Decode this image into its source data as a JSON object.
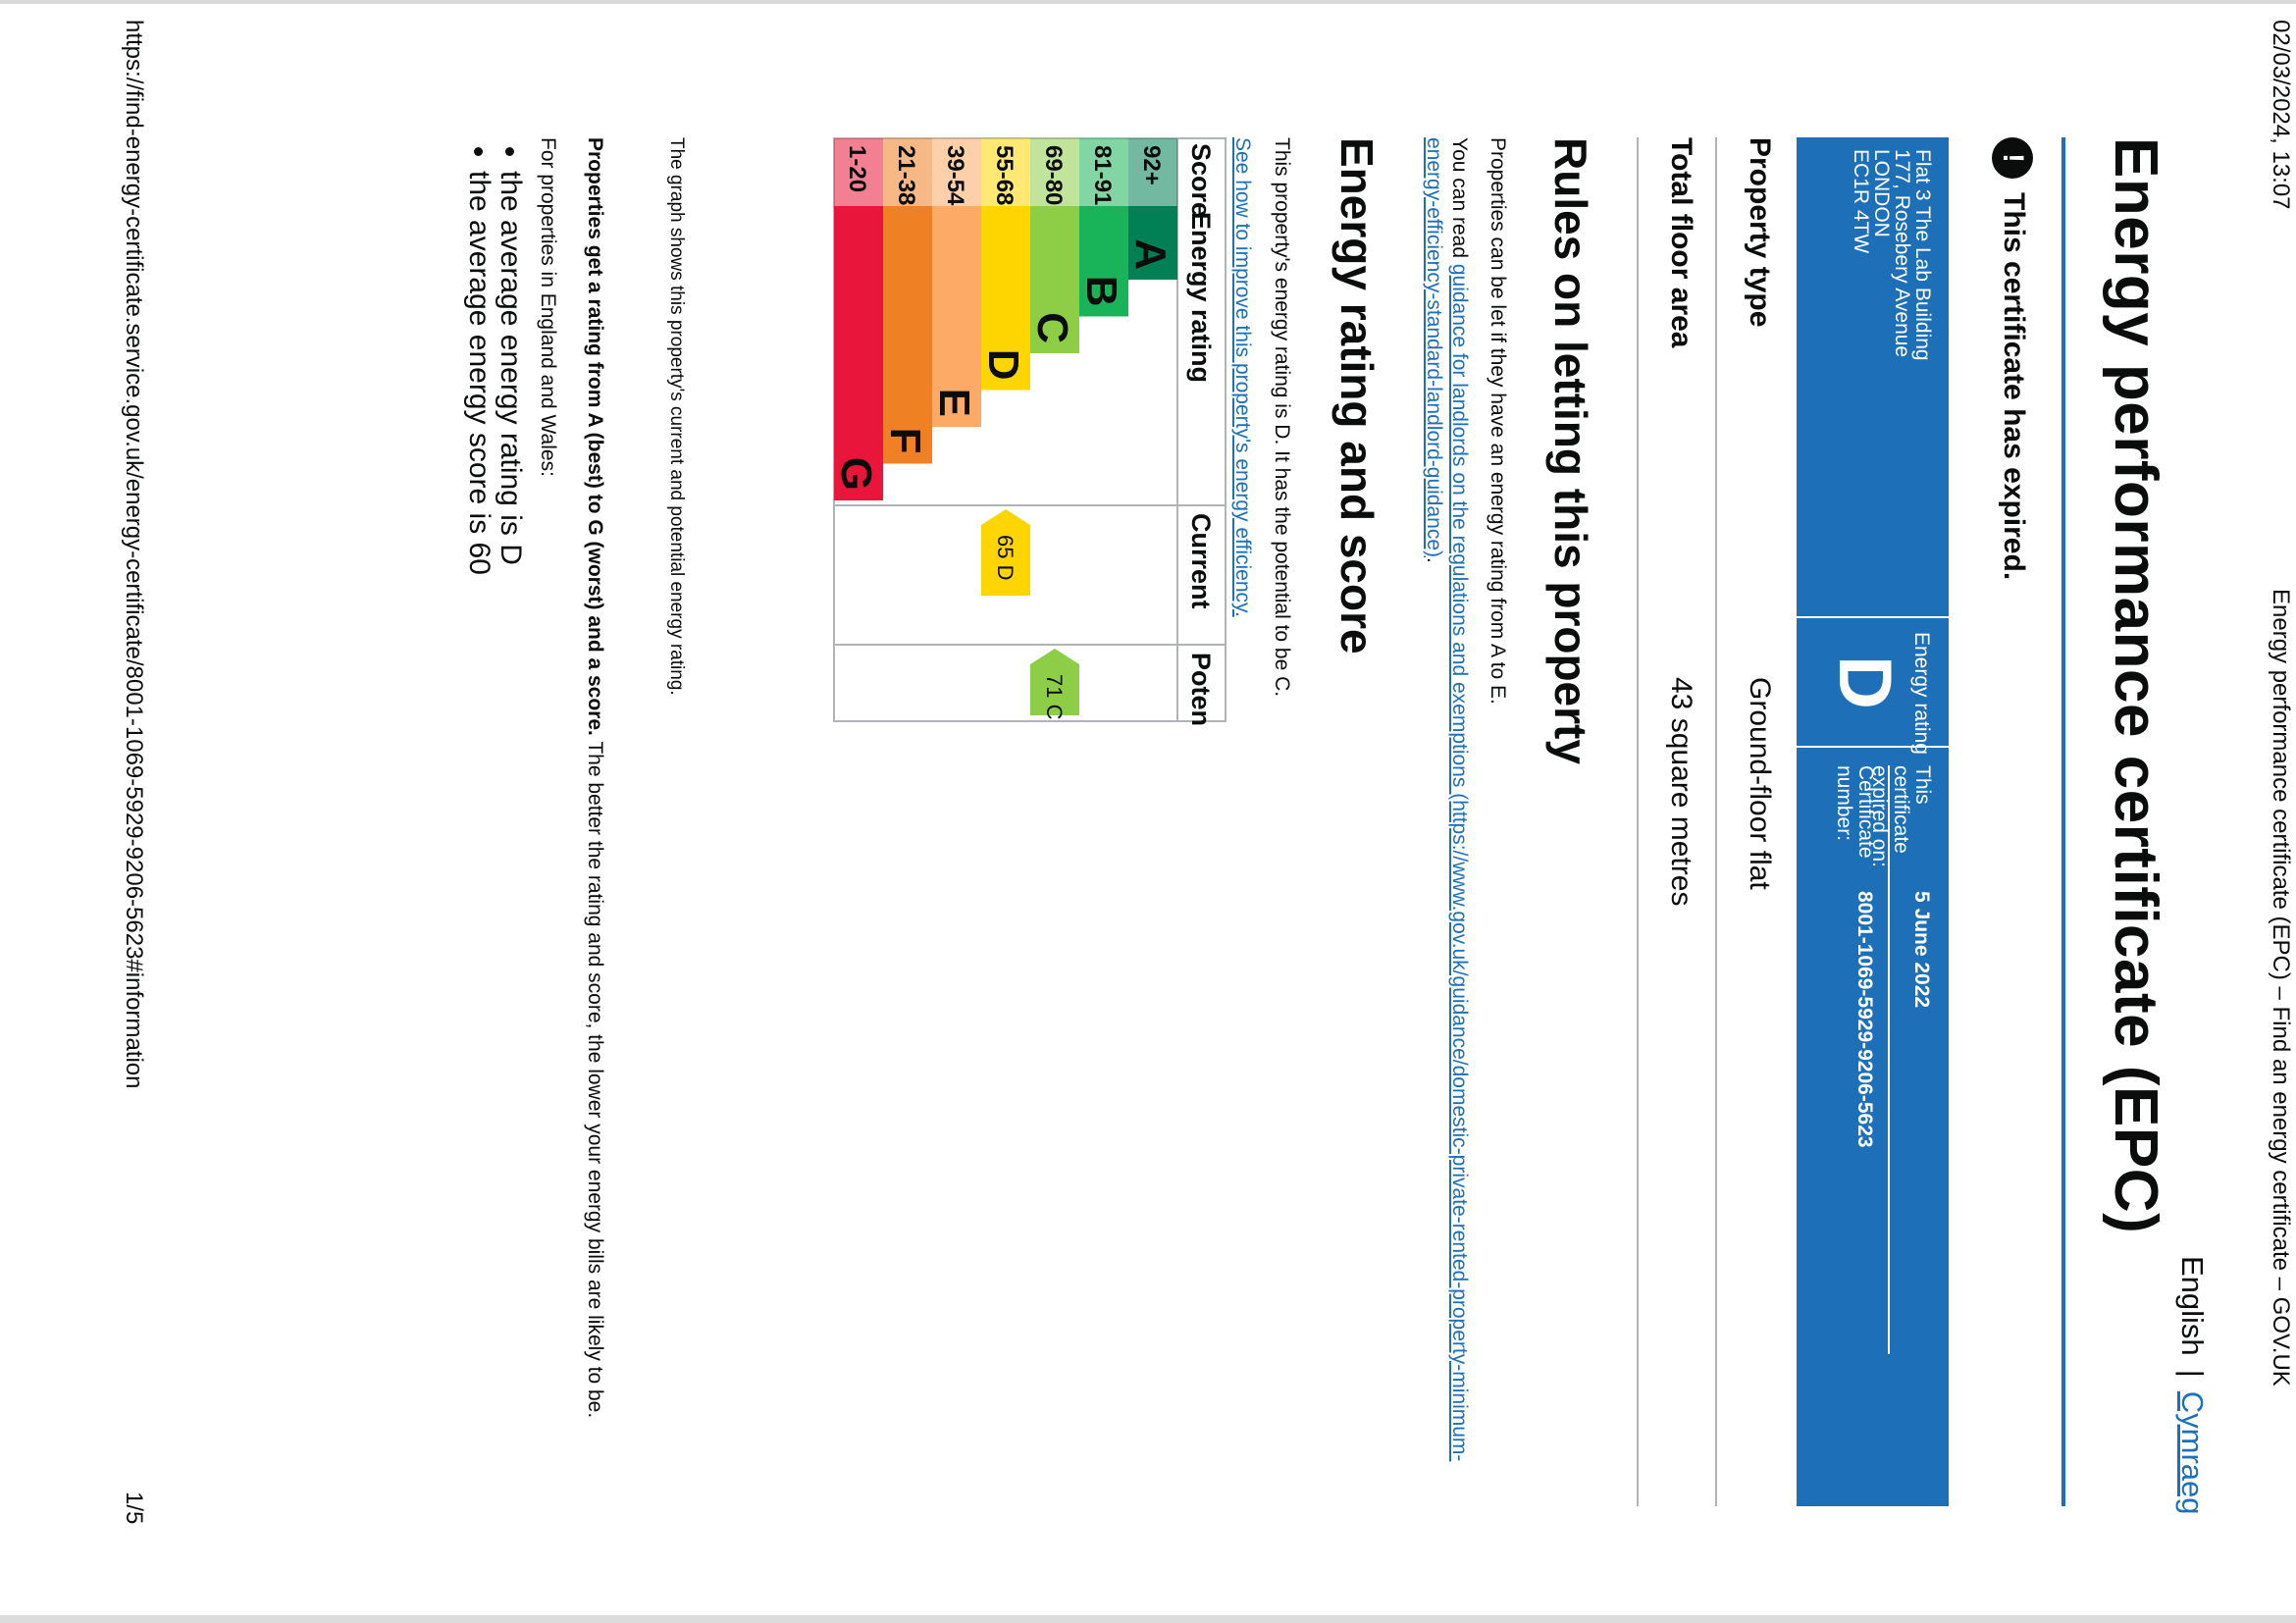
{
  "header": {
    "datetime": "02/03/2024, 13:07",
    "page_title": "Energy performance certificate (EPC) – Find an energy certificate – GOV.UK"
  },
  "language": {
    "english": "English",
    "separator": "|",
    "welsh": "Cymraeg"
  },
  "title": "Energy performance certificate (EPC)",
  "notice": {
    "icon": "!",
    "text": "This certificate has expired."
  },
  "summary": {
    "address": [
      "Flat 3 The Lab Building",
      "177, Rosebery Avenue",
      "LONDON",
      "EC1R 4TW"
    ],
    "energy_rating_label": "Energy rating",
    "energy_rating": "D",
    "expired_label": "This certificate expired on:",
    "expired_date": "5 June 2022",
    "certificate_label": "Certificate number:",
    "certificate_number": "8001-1069-5929-9206-5623"
  },
  "property": {
    "type_label": "Property type",
    "type_value": "Ground-floor flat",
    "area_label": "Total floor area",
    "area_value": "43 square metres"
  },
  "letting": {
    "heading": "Rules on letting this property",
    "text": "Properties can be let if they have an energy rating from A to E.",
    "guidance_prefix": "You can read ",
    "guidance_link": "guidance for landlords on the regulations and exemptions (https://www.gov.uk/guidance/domestic-private-rented-property-minimum-energy-efficiency-standard-landlord-guidance)",
    "guidance_suffix": "."
  },
  "rating_section": {
    "heading": "Energy rating and score",
    "text": "This property's energy rating is D. It has the potential to be C.",
    "improve_link": "See how to improve this property's energy efficiency."
  },
  "chart_data": {
    "type": "table",
    "columns": [
      "Score",
      "Energy rating",
      "Current",
      "Potential"
    ],
    "bands": [
      {
        "score": "92+",
        "letter": "A",
        "color": "#008054"
      },
      {
        "score": "81-91",
        "letter": "B",
        "color": "#19b459"
      },
      {
        "score": "69-80",
        "letter": "C",
        "color": "#8dce46"
      },
      {
        "score": "55-68",
        "letter": "D",
        "color": "#ffd500"
      },
      {
        "score": "39-54",
        "letter": "E",
        "color": "#fcaa65"
      },
      {
        "score": "21-38",
        "letter": "F",
        "color": "#ef8023"
      },
      {
        "score": "1-20",
        "letter": "G",
        "color": "#e9153b"
      }
    ],
    "current": {
      "score": 65,
      "letter": "D",
      "label": "65  D",
      "color": "#ffd500"
    },
    "potential": {
      "score": 71,
      "letter": "C",
      "label": "71  C",
      "color": "#8dce46"
    }
  },
  "graph_note": "The graph shows this property's current and potential energy rating.",
  "ratings_explainer": {
    "bold": "Properties get a rating from A (best) to G (worst) and a score.",
    "rest": " The better the rating and score, the lower your energy bills are likely to be."
  },
  "averages": {
    "intro": "For properties in England and Wales:",
    "items": [
      "the average energy rating is D",
      "the average energy score is 60"
    ]
  },
  "footer": {
    "url": "https://find-energy-certificate.service.gov.uk/energy-certificate/8001-1069-5929-9206-5623#information",
    "page": "1/5"
  }
}
